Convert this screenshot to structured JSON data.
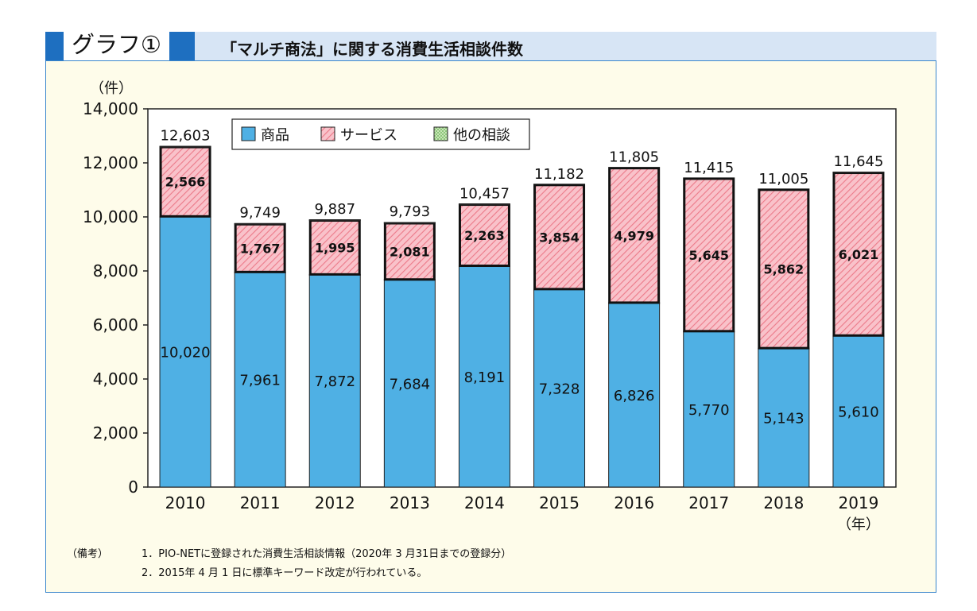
{
  "header": {
    "badge": "グラフ①",
    "title": "「マルチ商法」に関する消費生活相談件数"
  },
  "chart_data": {
    "type": "bar",
    "stacked": true,
    "categories": [
      "2010",
      "2011",
      "2012",
      "2013",
      "2014",
      "2015",
      "2016",
      "2017",
      "2018",
      "2019"
    ],
    "series": [
      {
        "name": "商品",
        "values": [
          10020,
          7961,
          7872,
          7684,
          8191,
          7328,
          6826,
          5770,
          5143,
          5610
        ],
        "color": "#4fb0e4"
      },
      {
        "name": "サービス",
        "values": [
          2566,
          1767,
          1995,
          2081,
          2263,
          3854,
          4979,
          5645,
          5862,
          6021
        ],
        "color": "#f6a9b3"
      },
      {
        "name": "他の相談",
        "values": [
          17,
          21,
          20,
          28,
          3,
          0,
          0,
          0,
          0,
          14
        ],
        "color": "#b5dba0"
      }
    ],
    "totals": [
      12603,
      9749,
      9887,
      9793,
      10457,
      11182,
      11805,
      11415,
      11005,
      11645
    ],
    "value_labels": {
      "商品": [
        "10,020",
        "7,961",
        "7,872",
        "7,684",
        "8,191",
        "7,328",
        "6,826",
        "5,770",
        "5,143",
        "5,610"
      ],
      "サービス": [
        "2,566",
        "1,767",
        "1,995",
        "2,081",
        "2,263",
        "3,854",
        "4,979",
        "5,645",
        "5,862",
        "6,021"
      ],
      "totals": [
        "12,603",
        "9,749",
        "9,887",
        "9,793",
        "10,457",
        "11,182",
        "11,805",
        "11,415",
        "11,005",
        "11,645"
      ]
    },
    "ylabel": "（件）",
    "xunit": "（年）",
    "ylim": [
      0,
      14000
    ],
    "yticks": [
      0,
      2000,
      4000,
      6000,
      8000,
      10000,
      12000,
      14000
    ],
    "ytick_labels": [
      "0",
      "2,000",
      "4,000",
      "6,000",
      "8,000",
      "10,000",
      "12,000",
      "14,000"
    ],
    "legend": [
      "商品",
      "サービス",
      "他の相談"
    ],
    "legend_position": "top-left",
    "grid": false
  },
  "notes": {
    "label": "（備考）",
    "items": [
      "1．PIO-NETに登録された消費生活相談情報（2020年 3 月31日までの登録分）",
      "2．2015年 4 月 1 日に標準キーワード改定が行われている。"
    ]
  }
}
